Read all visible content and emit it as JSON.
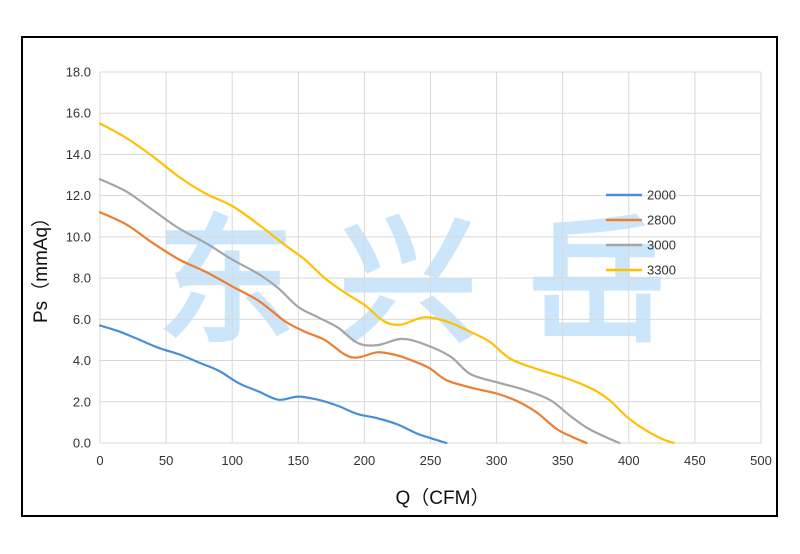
{
  "watermark": [
    "东",
    "兴",
    "岳"
  ],
  "chart_data": {
    "type": "line",
    "xlabel": "Q（CFM）",
    "ylabel": "Ps（mmAq）",
    "xlim": [
      0,
      500
    ],
    "ylim": [
      0,
      18
    ],
    "x_ticks": [
      "0",
      "50",
      "100",
      "150",
      "200",
      "250",
      "300",
      "350",
      "400",
      "450",
      "500"
    ],
    "y_ticks": [
      "0.0",
      "2.0",
      "4.0",
      "6.0",
      "8.0",
      "10.0",
      "12.0",
      "14.0",
      "16.0",
      "18.0"
    ],
    "grid": true,
    "legend_position": "right",
    "series": [
      {
        "name": "2000",
        "color": "#4a8fd6",
        "points": [
          [
            0,
            5.7
          ],
          [
            15,
            5.4
          ],
          [
            30,
            5.0
          ],
          [
            45,
            4.6
          ],
          [
            60,
            4.3
          ],
          [
            75,
            3.9
          ],
          [
            90,
            3.5
          ],
          [
            105,
            2.9
          ],
          [
            120,
            2.5
          ],
          [
            135,
            2.1
          ],
          [
            150,
            2.25
          ],
          [
            165,
            2.1
          ],
          [
            180,
            1.8
          ],
          [
            195,
            1.4
          ],
          [
            210,
            1.2
          ],
          [
            225,
            0.9
          ],
          [
            240,
            0.45
          ],
          [
            252,
            0.2
          ],
          [
            262,
            0.0
          ]
        ]
      },
      {
        "name": "2800",
        "color": "#ed7d31",
        "points": [
          [
            0,
            11.2
          ],
          [
            20,
            10.6
          ],
          [
            40,
            9.7
          ],
          [
            60,
            8.9
          ],
          [
            80,
            8.3
          ],
          [
            100,
            7.6
          ],
          [
            120,
            6.9
          ],
          [
            140,
            5.9
          ],
          [
            155,
            5.4
          ],
          [
            170,
            5.0
          ],
          [
            185,
            4.3
          ],
          [
            195,
            4.15
          ],
          [
            210,
            4.4
          ],
          [
            225,
            4.25
          ],
          [
            240,
            3.9
          ],
          [
            250,
            3.6
          ],
          [
            262,
            3.05
          ],
          [
            280,
            2.7
          ],
          [
            300,
            2.4
          ],
          [
            315,
            2.05
          ],
          [
            330,
            1.5
          ],
          [
            345,
            0.7
          ],
          [
            357,
            0.3
          ],
          [
            368,
            0.0
          ]
        ]
      },
      {
        "name": "3000",
        "color": "#a5a5a5",
        "points": [
          [
            0,
            12.8
          ],
          [
            20,
            12.2
          ],
          [
            40,
            11.3
          ],
          [
            60,
            10.4
          ],
          [
            80,
            9.7
          ],
          [
            100,
            8.9
          ],
          [
            120,
            8.2
          ],
          [
            135,
            7.5
          ],
          [
            150,
            6.6
          ],
          [
            165,
            6.1
          ],
          [
            180,
            5.6
          ],
          [
            195,
            4.85
          ],
          [
            210,
            4.75
          ],
          [
            228,
            5.05
          ],
          [
            245,
            4.8
          ],
          [
            265,
            4.2
          ],
          [
            280,
            3.35
          ],
          [
            300,
            2.95
          ],
          [
            320,
            2.6
          ],
          [
            340,
            2.1
          ],
          [
            355,
            1.35
          ],
          [
            368,
            0.75
          ],
          [
            382,
            0.3
          ],
          [
            393,
            0.0
          ]
        ]
      },
      {
        "name": "3300",
        "color": "#ffc000",
        "points": [
          [
            0,
            15.5
          ],
          [
            20,
            14.8
          ],
          [
            40,
            13.9
          ],
          [
            60,
            12.9
          ],
          [
            80,
            12.1
          ],
          [
            100,
            11.5
          ],
          [
            120,
            10.6
          ],
          [
            140,
            9.6
          ],
          [
            155,
            8.9
          ],
          [
            170,
            8.0
          ],
          [
            185,
            7.3
          ],
          [
            200,
            6.7
          ],
          [
            215,
            5.9
          ],
          [
            228,
            5.75
          ],
          [
            245,
            6.1
          ],
          [
            262,
            5.9
          ],
          [
            280,
            5.4
          ],
          [
            295,
            4.9
          ],
          [
            310,
            4.1
          ],
          [
            330,
            3.6
          ],
          [
            350,
            3.2
          ],
          [
            370,
            2.7
          ],
          [
            385,
            2.1
          ],
          [
            398,
            1.3
          ],
          [
            412,
            0.65
          ],
          [
            425,
            0.2
          ],
          [
            434,
            0.0
          ]
        ]
      }
    ]
  }
}
